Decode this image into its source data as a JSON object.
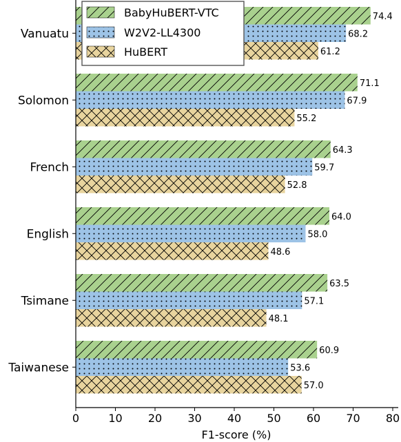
{
  "chart_data": {
    "type": "bar",
    "orientation": "horizontal",
    "categories": [
      "Vanuatu",
      "Solomon",
      "French",
      "English",
      "Tsimane",
      "Taiwanese"
    ],
    "series": [
      {
        "name": "BabyHuBERT-VTC",
        "values": [
          74.4,
          71.1,
          64.3,
          64.0,
          63.5,
          60.9
        ],
        "color": "#a9d18e",
        "pattern": "diagonal-hatch"
      },
      {
        "name": "W2V2-LL4300",
        "values": [
          68.2,
          67.9,
          59.7,
          58.0,
          57.1,
          53.6
        ],
        "color": "#9dc3e6",
        "pattern": "dots"
      },
      {
        "name": "HuBERT",
        "values": [
          61.2,
          55.2,
          52.8,
          48.6,
          48.1,
          57.0
        ],
        "color": "#e8d49e",
        "pattern": "crosshatch"
      }
    ],
    "value_labels": [
      [
        "74.4",
        "68.2",
        "61.2"
      ],
      [
        "71.1",
        "67.9",
        "55.2"
      ],
      [
        "64.3",
        "59.7",
        "52.8"
      ],
      [
        "64.0",
        "58.0",
        "48.6"
      ],
      [
        "63.5",
        "57.1",
        "48.1"
      ],
      [
        "60.9",
        "53.6",
        "57.0"
      ]
    ],
    "x_ticks": [
      "0",
      "10",
      "20",
      "30",
      "40",
      "50",
      "60",
      "70",
      "80"
    ],
    "xlim": [
      0,
      80
    ],
    "xlabel": "F1-score (%)",
    "ylabel": "",
    "title": "",
    "grid": false,
    "legend_position": "top-left"
  }
}
